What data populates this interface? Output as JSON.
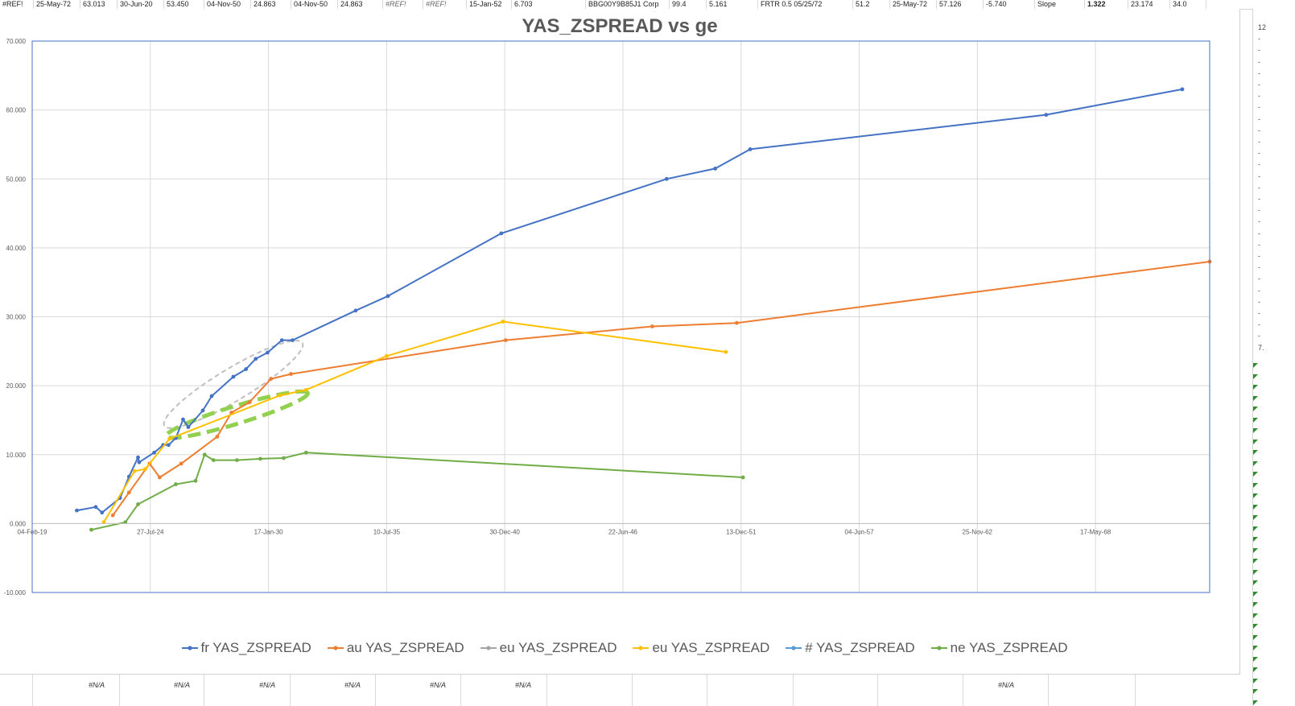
{
  "spreadsheet": {
    "top_row": [
      {
        "text": "#REF!",
        "w": 42,
        "style": "normal"
      },
      {
        "text": "25-May-72",
        "w": 58,
        "style": "normal"
      },
      {
        "text": "63.013",
        "w": 46,
        "style": "normal"
      },
      {
        "text": "30-Jun-20",
        "w": 58,
        "style": "normal"
      },
      {
        "text": "53.450",
        "w": 50,
        "style": "normal"
      },
      {
        "text": "04-Nov-50",
        "w": 58,
        "style": "normal"
      },
      {
        "text": "24.863",
        "w": 50,
        "style": "normal"
      },
      {
        "text": "04-Nov-50",
        "w": 58,
        "style": "normal"
      },
      {
        "text": "24.863",
        "w": 56,
        "style": "normal"
      },
      {
        "text": "#REF!",
        "w": 50,
        "style": "italic"
      },
      {
        "text": "#REF!",
        "w": 54,
        "style": "italic"
      },
      {
        "text": "15-Jan-52",
        "w": 56,
        "style": "normal"
      },
      {
        "text": "6.703",
        "w": 92,
        "style": "normal"
      },
      {
        "text": "BBG00Y9B85J1 Corp",
        "w": 104,
        "style": "normal"
      },
      {
        "text": "99.4",
        "w": 46,
        "style": "normal"
      },
      {
        "text": "5.161",
        "w": 64,
        "style": "normal"
      },
      {
        "text": "FRTR 0.5 05/25/72",
        "w": 118,
        "style": "normal"
      },
      {
        "text": "51.2",
        "w": 46,
        "style": "normal"
      },
      {
        "text": "25-May-72",
        "w": 58,
        "style": "normal"
      },
      {
        "text": "57.126",
        "w": 58,
        "style": "normal"
      },
      {
        "text": "-5.740",
        "w": 64,
        "style": "normal"
      },
      {
        "text": "Slope",
        "w": 62,
        "style": "normal"
      },
      {
        "text": "1.322",
        "w": 54,
        "style": "bold"
      },
      {
        "text": "23.174",
        "w": 52,
        "style": "normal"
      },
      {
        "text": "34.0",
        "w": 45,
        "style": "normal"
      }
    ],
    "right_col_marks": [
      "12",
      "-",
      "-",
      "-",
      "-",
      "-",
      "-",
      "-",
      "-",
      "-",
      "-",
      "-",
      "-",
      "-",
      "-",
      "-",
      "-",
      "-",
      "-",
      "-",
      "-",
      "-",
      "-",
      "-",
      "-",
      "-",
      "-",
      "-",
      "7."
    ],
    "bottom_na": "#N/A"
  },
  "colors": {
    "fr": "#4472c4",
    "au": "#ed7d31",
    "eu_grey": "#a5a5a5",
    "eu_yellow": "#ffc000",
    "hash": "#5b9bd5",
    "ne": "#70ad47",
    "grid": "#d9d9d9",
    "plot_border": "#4472c4",
    "annotation_green": "#92d050",
    "annotation_grey": "#bfbfbf"
  },
  "chart_data": {
    "type": "line",
    "title": "YAS_ZSPREAD vs ge",
    "xlabel": "",
    "ylabel": "",
    "x_axis": {
      "type": "date",
      "min": "2019-02-04",
      "max": "2073-09-01",
      "ticks": [
        {
          "date": "2019-02-04",
          "label": "04-Feb-19"
        },
        {
          "date": "2024-07-27",
          "label": "27-Jul-24"
        },
        {
          "date": "2030-01-17",
          "label": "17-Jan-30"
        },
        {
          "date": "2035-07-10",
          "label": "10-Jul-35"
        },
        {
          "date": "2040-12-30",
          "label": "30-Dec-40"
        },
        {
          "date": "2046-06-22",
          "label": "22-Jun-46"
        },
        {
          "date": "2051-12-13",
          "label": "13-Dec-51"
        },
        {
          "date": "2057-06-04",
          "label": "04-Jun-57"
        },
        {
          "date": "2062-11-25",
          "label": "25-Nov-62"
        },
        {
          "date": "2068-05-17",
          "label": "17-May-68"
        }
      ]
    },
    "y_axis": {
      "min": -10,
      "max": 70,
      "ticks": [
        {
          "value": 70,
          "label": "70.000"
        },
        {
          "value": 60,
          "label": "60.000"
        },
        {
          "value": 50,
          "label": "50.000"
        },
        {
          "value": 40,
          "label": "40.000"
        },
        {
          "value": 30,
          "label": "30.000"
        },
        {
          "value": 20,
          "label": "20.000"
        },
        {
          "value": 10,
          "label": "10.000"
        },
        {
          "value": 0,
          "label": "0.000"
        },
        {
          "value": -10,
          "label": "-10.000"
        }
      ]
    },
    "grid": true,
    "legend_position": "bottom",
    "series": [
      {
        "name": "fr YAS_ZSPREAD",
        "color_key": "fr",
        "markers": true,
        "points": [
          [
            "2021-03-01",
            1.9
          ],
          [
            "2022-01-15",
            2.4
          ],
          [
            "2022-05-01",
            1.6
          ],
          [
            "2023-03-01",
            3.7
          ],
          [
            "2023-08-01",
            6.8
          ],
          [
            "2024-01-01",
            9.6
          ],
          [
            "2024-01-20",
            8.9
          ],
          [
            "2024-10-01",
            10.3
          ],
          [
            "2025-03-01",
            11.4
          ],
          [
            "2025-06-01",
            11.4
          ],
          [
            "2025-10-01",
            12.4
          ],
          [
            "2026-02-01",
            15.1
          ],
          [
            "2026-05-01",
            14.0
          ],
          [
            "2027-01-01",
            16.4
          ],
          [
            "2027-06-01",
            18.5
          ],
          [
            "2028-06-01",
            21.3
          ],
          [
            "2029-01-01",
            22.4
          ],
          [
            "2029-06-15",
            23.9
          ],
          [
            "2030-01-01",
            24.8
          ],
          [
            "2030-09-01",
            26.6
          ],
          [
            "2031-03-01",
            26.6
          ],
          [
            "2034-02-01",
            30.9
          ],
          [
            "2035-08-01",
            33.0
          ],
          [
            "2040-11-01",
            42.1
          ],
          [
            "2048-07-01",
            50.0
          ],
          [
            "2050-10-01",
            51.5
          ],
          [
            "2052-05-15",
            54.3
          ],
          [
            "2066-02-01",
            59.3
          ],
          [
            "2072-05-25",
            63.0
          ]
        ]
      },
      {
        "name": "au YAS_ZSPREAD",
        "color_key": "au",
        "markers": true,
        "points": [
          [
            "2022-11-01",
            1.2
          ],
          [
            "2023-08-01",
            4.5
          ],
          [
            "2024-07-15",
            8.7
          ],
          [
            "2025-01-01",
            6.7
          ],
          [
            "2026-01-01",
            8.7
          ],
          [
            "2027-09-01",
            12.6
          ],
          [
            "2028-05-01",
            16.1
          ],
          [
            "2029-03-01",
            17.6
          ],
          [
            "2030-03-01",
            21.0
          ],
          [
            "2031-02-01",
            21.7
          ],
          [
            "2041-01-15",
            26.6
          ],
          [
            "2047-11-01",
            28.6
          ],
          [
            "2051-10-01",
            29.1
          ],
          [
            "2073-09-01",
            38.0
          ]
        ]
      },
      {
        "name": "eu YAS_ZSPREAD",
        "color_key": "eu_grey",
        "markers": true,
        "points": []
      },
      {
        "name": "eu YAS_ZSPREAD",
        "color_key": "eu_yellow",
        "markers": true,
        "points": [
          [
            "2022-06-01",
            0.2
          ],
          [
            "2023-11-01",
            7.6
          ],
          [
            "2024-05-01",
            7.9
          ],
          [
            "2025-06-15",
            12.3
          ],
          [
            "2030-08-01",
            18.6
          ],
          [
            "2031-10-15",
            19.4
          ],
          [
            "2035-07-10",
            24.3
          ],
          [
            "2040-12-01",
            29.3
          ],
          [
            "2051-04-01",
            24.9
          ]
        ]
      },
      {
        "name": "# YAS_ZSPREAD",
        "color_key": "hash",
        "markers": true,
        "points": []
      },
      {
        "name": "ne YAS_ZSPREAD",
        "color_key": "ne",
        "markers": true,
        "points": [
          [
            "2021-11-01",
            -0.9
          ],
          [
            "2023-06-01",
            0.2
          ],
          [
            "2024-01-01",
            2.8
          ],
          [
            "2025-10-01",
            5.7
          ],
          [
            "2026-09-01",
            6.2
          ],
          [
            "2027-02-01",
            10.0
          ],
          [
            "2027-07-01",
            9.2
          ],
          [
            "2028-08-01",
            9.2
          ],
          [
            "2029-09-01",
            9.4
          ],
          [
            "2030-10-01",
            9.5
          ],
          [
            "2031-10-15",
            10.3
          ],
          [
            "2052-01-15",
            6.7
          ]
        ]
      }
    ],
    "annotations": [
      {
        "kind": "ellipse",
        "style": "dashed",
        "color_key": "annotation_grey",
        "note": "around fr curve 2025–2031"
      },
      {
        "kind": "ellipse",
        "style": "dashed-thick",
        "color_key": "annotation_green",
        "note": "around au/eu curves 2025–2031"
      }
    ]
  }
}
